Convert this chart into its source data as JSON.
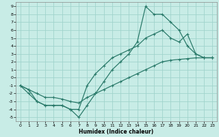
{
  "xlabel": "Humidex (Indice chaleur)",
  "xlim": [
    -0.5,
    23.5
  ],
  "ylim": [
    -5.5,
    9.5
  ],
  "xticks": [
    0,
    1,
    2,
    3,
    4,
    5,
    6,
    7,
    8,
    9,
    10,
    11,
    12,
    13,
    14,
    15,
    16,
    17,
    18,
    19,
    20,
    21,
    22,
    23
  ],
  "yticks": [
    -5,
    -4,
    -3,
    -2,
    -1,
    0,
    1,
    2,
    3,
    4,
    5,
    6,
    7,
    8,
    9
  ],
  "bg_color": "#c8ece6",
  "grid_color": "#a0d4cc",
  "line_color": "#2a7a6a",
  "line1_x": [
    0,
    1,
    2,
    3,
    4,
    5,
    6,
    7,
    8,
    9,
    10,
    11,
    12,
    13,
    14,
    15,
    16,
    17,
    18,
    19,
    20,
    21,
    22,
    23
  ],
  "line1_y": [
    -1,
    -2,
    -3,
    -3.5,
    -3.5,
    -3.5,
    -4,
    -5,
    -3.5,
    -2,
    -0.5,
    1,
    2,
    3,
    4.5,
    9,
    8,
    8,
    7,
    6,
    4,
    3,
    2.5,
    2.5
  ],
  "line2_x": [
    0,
    1,
    2,
    3,
    4,
    5,
    6,
    7,
    8,
    9,
    10,
    11,
    12,
    13,
    14,
    15,
    16,
    17,
    18,
    19,
    20,
    21,
    22,
    23
  ],
  "line2_y": [
    -1,
    -1.5,
    -3,
    -3.5,
    -3.5,
    -3.5,
    -4,
    -4,
    -1,
    0.5,
    1.5,
    2.5,
    3,
    3.5,
    4,
    5,
    5.5,
    6,
    5,
    4.5,
    5.5,
    3,
    2.5,
    2.5
  ],
  "line3_x": [
    0,
    1,
    2,
    3,
    4,
    5,
    6,
    7,
    8,
    9,
    10,
    11,
    12,
    13,
    14,
    15,
    16,
    17,
    18,
    19,
    20,
    21,
    22,
    23
  ],
  "line3_y": [
    -1,
    -1.5,
    -2,
    -2.5,
    -2.5,
    -2.7,
    -3,
    -3.2,
    -2.5,
    -2,
    -1.5,
    -1,
    -0.5,
    0,
    0.5,
    1,
    1.5,
    2,
    2.2,
    2.3,
    2.4,
    2.5,
    2.5,
    2.5
  ]
}
